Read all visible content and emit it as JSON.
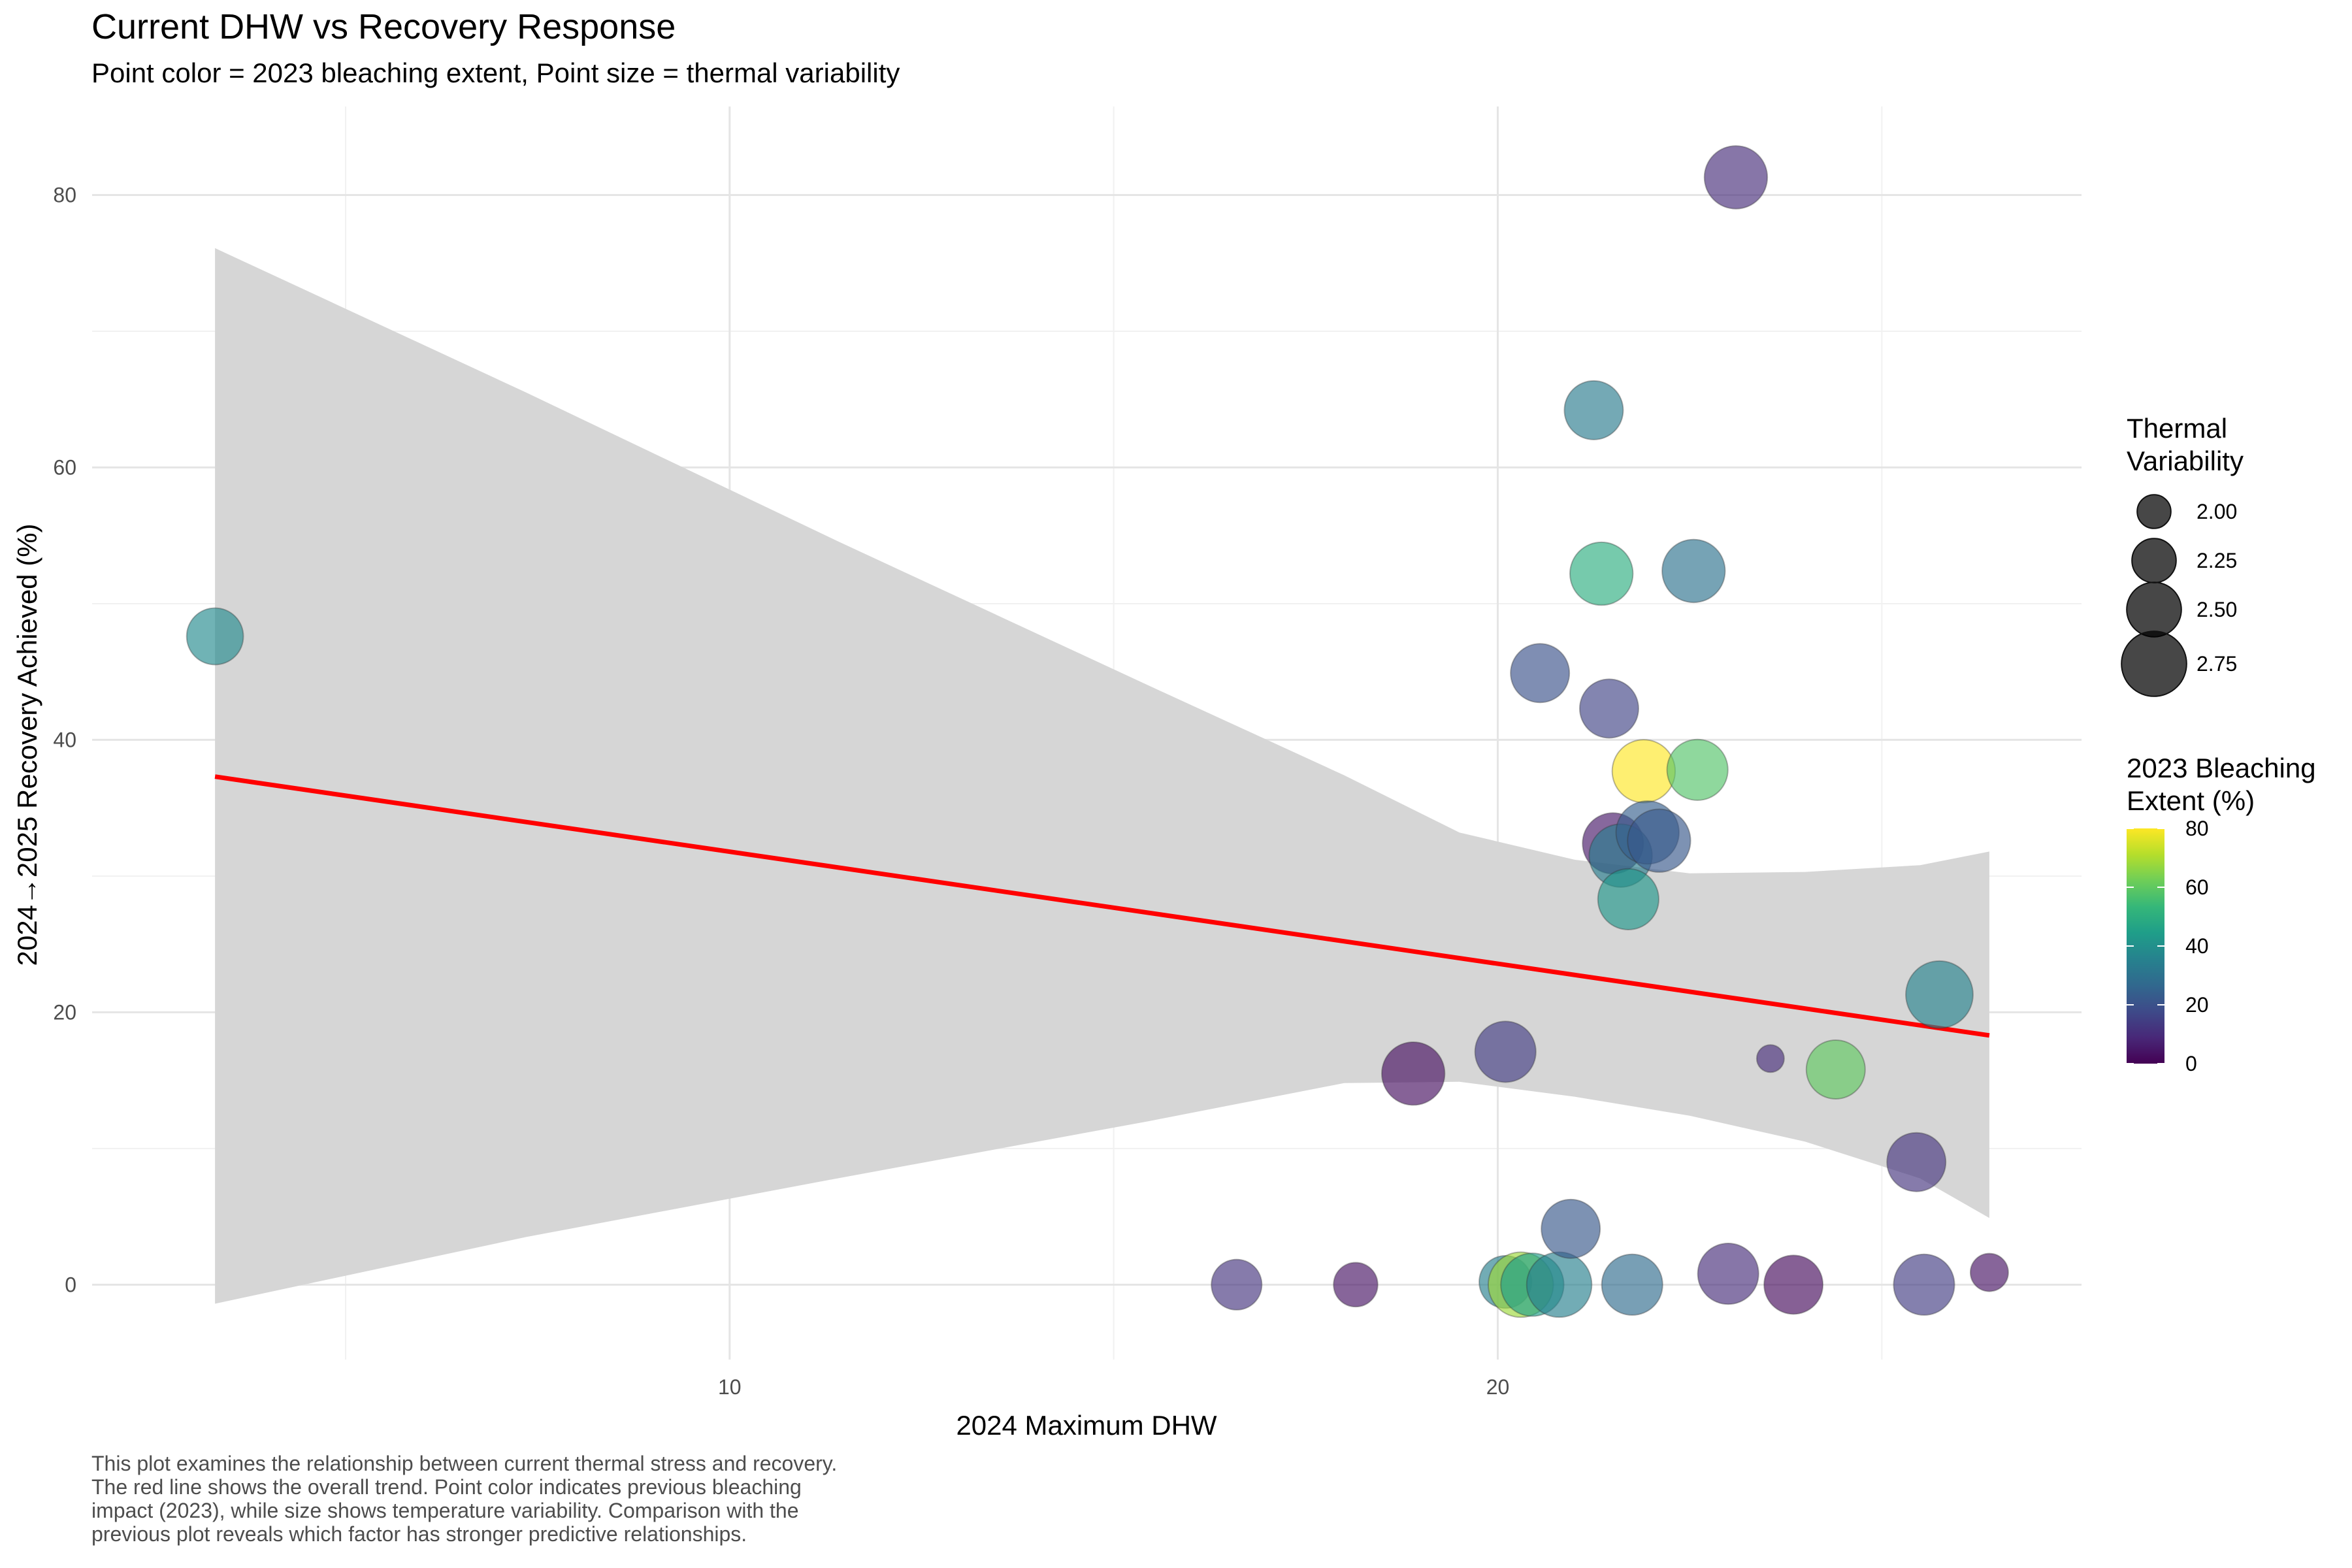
{
  "chart_data": {
    "type": "scatter",
    "title": "Current DHW vs Recovery Response",
    "subtitle": "Point color = 2023 bleaching extent, Point size = thermal variability",
    "xlabel": "2024 Maximum DHW",
    "ylabel": "2024→2025 Recovery Achieved (%)",
    "xlim": [
      1.7,
      27.6
    ],
    "ylim": [
      -5.5,
      86.5
    ],
    "x_ticks": [
      10,
      20
    ],
    "x_minor_ticks": [
      5,
      15,
      25
    ],
    "y_ticks": [
      0,
      20,
      40,
      60,
      80
    ],
    "y_minor_ticks": [
      10,
      30,
      50,
      70
    ],
    "grid": true,
    "legend_position": "right",
    "size_legend": {
      "title_lines": [
        "Thermal",
        "Variability"
      ],
      "breaks": [
        2.0,
        2.25,
        2.5,
        2.75
      ],
      "labels": [
        "2.00",
        "2.25",
        "2.50",
        "2.75"
      ]
    },
    "color_legend": {
      "title_lines": [
        "2023 Bleaching",
        "Extent (%)"
      ],
      "range": [
        0,
        80
      ],
      "breaks": [
        0,
        20,
        40,
        60,
        80
      ],
      "labels": [
        "0",
        "20",
        "40",
        "60",
        "80"
      ],
      "palette": "viridis"
    },
    "trend": {
      "method": "lm",
      "line_color": "#ff0000",
      "band_color": "#d6d6d6",
      "points": [
        {
          "x": 3.3,
          "y": 37.3,
          "lo": -1.4,
          "hi": 76.1
        },
        {
          "x": 7.35,
          "y": 34.5,
          "lo": 3.5,
          "hi": 65.5
        },
        {
          "x": 11.4,
          "y": 31.2,
          "lo": 7.8,
          "hi": 54.6
        },
        {
          "x": 15.45,
          "y": 28.0,
          "lo": 12.0,
          "hi": 44.0
        },
        {
          "x": 18.0,
          "y": 25.3,
          "lo": 14.8,
          "hi": 37.4
        },
        {
          "x": 19.5,
          "y": 24.0,
          "lo": 14.9,
          "hi": 33.2
        },
        {
          "x": 21.0,
          "y": 22.8,
          "lo": 13.8,
          "hi": 31.2
        },
        {
          "x": 22.5,
          "y": 21.5,
          "lo": 12.4,
          "hi": 30.2
        },
        {
          "x": 24.0,
          "y": 20.4,
          "lo": 10.5,
          "hi": 30.3
        },
        {
          "x": 25.5,
          "y": 19.2,
          "lo": 7.8,
          "hi": 30.8
        },
        {
          "x": 26.4,
          "y": 18.3,
          "lo": 4.9,
          "hi": 31.8
        }
      ]
    },
    "points": [
      {
        "x": 3.3,
        "y": 47.6,
        "bleaching": 38,
        "variability": 2.55
      },
      {
        "x": 16.6,
        "y": 0.0,
        "bleaching": 12,
        "variability": 2.4
      },
      {
        "x": 18.15,
        "y": 0.0,
        "bleaching": 4,
        "variability": 2.25
      },
      {
        "x": 18.9,
        "y": 15.5,
        "bleaching": 3,
        "variability": 2.7
      },
      {
        "x": 20.1,
        "y": 17.1,
        "bleaching": 14,
        "variability": 2.65
      },
      {
        "x": 20.1,
        "y": 0.2,
        "bleaching": 35,
        "variability": 2.45
      },
      {
        "x": 20.3,
        "y": 0.0,
        "bleaching": 68,
        "variability": 2.75
      },
      {
        "x": 20.45,
        "y": 0.0,
        "bleaching": 45,
        "variability": 2.7
      },
      {
        "x": 20.55,
        "y": 44.9,
        "bleaching": 20,
        "variability": 2.6
      },
      {
        "x": 20.8,
        "y": 0.0,
        "bleaching": 35,
        "variability": 2.75
      },
      {
        "x": 20.95,
        "y": 4.1,
        "bleaching": 22,
        "variability": 2.6
      },
      {
        "x": 21.25,
        "y": 64.2,
        "bleaching": 33,
        "variability": 2.6
      },
      {
        "x": 21.35,
        "y": 52.2,
        "bleaching": 50,
        "variability": 2.7
      },
      {
        "x": 21.45,
        "y": 42.3,
        "bleaching": 16,
        "variability": 2.6
      },
      {
        "x": 21.5,
        "y": 32.4,
        "bleaching": 5,
        "variability": 2.65
      },
      {
        "x": 21.6,
        "y": 31.5,
        "bleaching": 34,
        "variability": 2.7
      },
      {
        "x": 21.7,
        "y": 28.3,
        "bleaching": 42,
        "variability": 2.65
      },
      {
        "x": 21.75,
        "y": 0.0,
        "bleaching": 28,
        "variability": 2.65
      },
      {
        "x": 21.9,
        "y": 37.7,
        "bleaching": 80,
        "variability": 2.7
      },
      {
        "x": 21.95,
        "y": 33.2,
        "bleaching": 24,
        "variability": 2.7
      },
      {
        "x": 22.1,
        "y": 32.6,
        "bleaching": 22,
        "variability": 2.7
      },
      {
        "x": 22.55,
        "y": 52.4,
        "bleaching": 30,
        "variability": 2.7
      },
      {
        "x": 22.6,
        "y": 37.8,
        "bleaching": 58,
        "variability": 2.65
      },
      {
        "x": 23.0,
        "y": 0.8,
        "bleaching": 10,
        "variability": 2.65
      },
      {
        "x": 23.1,
        "y": 81.3,
        "bleaching": 10,
        "variability": 2.7
      },
      {
        "x": 23.55,
        "y": 16.6,
        "bleaching": 10,
        "variability": 1.85
      },
      {
        "x": 23.85,
        "y": 0.0,
        "bleaching": 2,
        "variability": 2.6
      },
      {
        "x": 24.4,
        "y": 15.8,
        "bleaching": 60,
        "variability": 2.6
      },
      {
        "x": 25.45,
        "y": 9.0,
        "bleaching": 12,
        "variability": 2.6
      },
      {
        "x": 25.55,
        "y": 0.0,
        "bleaching": 14,
        "variability": 2.65
      },
      {
        "x": 25.75,
        "y": 21.3,
        "bleaching": 36,
        "variability": 2.8
      },
      {
        "x": 26.4,
        "y": 0.9,
        "bleaching": 4,
        "variability": 2.1
      }
    ]
  },
  "caption_lines": [
    "This plot examines the relationship between current thermal stress and recovery.",
    "The red line shows the overall trend. Point color indicates previous bleaching",
    "impact (2023), while size shows temperature variability. Comparison with the",
    "previous plot reveals which factor has stronger predictive relationships."
  ]
}
